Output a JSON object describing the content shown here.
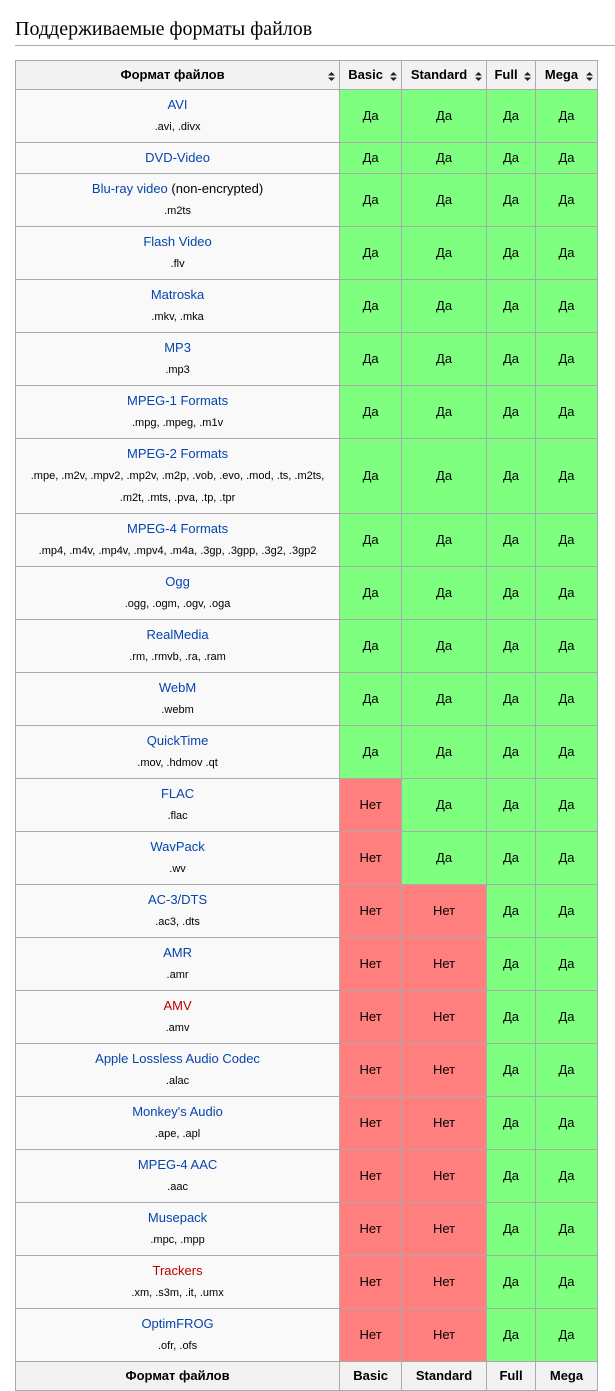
{
  "header": {
    "title": "Поддерживаемые форматы файлов"
  },
  "table": {
    "columns": [
      "Формат файлов",
      "Basic",
      "Standard",
      "Full",
      "Mega"
    ],
    "footer": [
      "Формат файлов",
      "Basic",
      "Standard",
      "Full",
      "Mega"
    ],
    "rows": [
      {
        "name": "AVI",
        "color": "#0645ad",
        "ext": ".avi, .divx",
        "values": [
          "Да",
          "Да",
          "Да",
          "Да"
        ]
      },
      {
        "name": "DVD-Video",
        "color": "#0645ad",
        "values": [
          "Да",
          "Да",
          "Да",
          "Да"
        ]
      },
      {
        "name": "Blu-ray video",
        "note": "(non-encrypted)",
        "color": "#0645ad",
        "ext": ".m2ts",
        "values": [
          "Да",
          "Да",
          "Да",
          "Да"
        ]
      },
      {
        "name": "Flash Video",
        "color": "#0645ad",
        "ext": ".flv",
        "values": [
          "Да",
          "Да",
          "Да",
          "Да"
        ]
      },
      {
        "name": "Matroska",
        "color": "#0645ad",
        "ext": ".mkv, .mka",
        "values": [
          "Да",
          "Да",
          "Да",
          "Да"
        ]
      },
      {
        "name": "MP3",
        "color": "#0645ad",
        "ext": ".mp3",
        "values": [
          "Да",
          "Да",
          "Да",
          "Да"
        ]
      },
      {
        "name": "MPEG-1 Formats",
        "color": "#0645ad",
        "ext": ".mpg, .mpeg, .m1v",
        "values": [
          "Да",
          "Да",
          "Да",
          "Да"
        ]
      },
      {
        "name": "MPEG-2 Formats",
        "color": "#0645ad",
        "ext": ".mpe, .m2v, .mpv2, .mp2v, .m2p, .vob, .evo, .mod, .ts, .m2ts, .m2t, .mts, .pva, .tp, .tpr",
        "values": [
          "Да",
          "Да",
          "Да",
          "Да"
        ]
      },
      {
        "name": "MPEG-4 Formats",
        "color": "#0645ad",
        "ext": ".mp4, .m4v, .mp4v, .mpv4, .m4a, .3gp, .3gpp, .3g2, .3gp2",
        "values": [
          "Да",
          "Да",
          "Да",
          "Да"
        ]
      },
      {
        "name": "Ogg",
        "color": "#0645ad",
        "ext": ".ogg, .ogm, .ogv, .oga",
        "values": [
          "Да",
          "Да",
          "Да",
          "Да"
        ]
      },
      {
        "name": "RealMedia",
        "color": "#0645ad",
        "ext": ".rm, .rmvb, .ra, .ram",
        "values": [
          "Да",
          "Да",
          "Да",
          "Да"
        ]
      },
      {
        "name": "WebM",
        "color": "#0645ad",
        "ext": ".webm",
        "values": [
          "Да",
          "Да",
          "Да",
          "Да"
        ]
      },
      {
        "name": "QuickTime",
        "color": "#0645ad",
        "ext": ".mov, .hdmov .qt",
        "values": [
          "Да",
          "Да",
          "Да",
          "Да"
        ]
      },
      {
        "name": "FLAC",
        "color": "#0645ad",
        "ext": ".flac",
        "values": [
          "Нет",
          "Да",
          "Да",
          "Да"
        ]
      },
      {
        "name": "WavPack",
        "color": "#0645ad",
        "ext": ".wv",
        "values": [
          "Нет",
          "Да",
          "Да",
          "Да"
        ]
      },
      {
        "name": "AC-3/DTS",
        "color": "#0645ad",
        "ext": ".ac3, .dts",
        "values": [
          "Нет",
          "Нет",
          "Да",
          "Да"
        ]
      },
      {
        "name": "AMR",
        "color": "#0645ad",
        "ext": ".amr",
        "values": [
          "Нет",
          "Нет",
          "Да",
          "Да"
        ]
      },
      {
        "name": "AMV",
        "color": "#ba0000",
        "ext": ".amv",
        "values": [
          "Нет",
          "Нет",
          "Да",
          "Да"
        ]
      },
      {
        "name": "Apple Lossless Audio Codec",
        "color": "#0645ad",
        "ext": ".alac",
        "values": [
          "Нет",
          "Нет",
          "Да",
          "Да"
        ]
      },
      {
        "name": "Monkey's Audio",
        "color": "#0645ad",
        "ext": ".ape, .apl",
        "values": [
          "Нет",
          "Нет",
          "Да",
          "Да"
        ]
      },
      {
        "name": "MPEG-4 AAC",
        "color": "#0645ad",
        "ext": ".aac",
        "values": [
          "Нет",
          "Нет",
          "Да",
          "Да"
        ]
      },
      {
        "name": "Musepack",
        "color": "#0645ad",
        "ext": ".mpc, .mpp",
        "values": [
          "Нет",
          "Нет",
          "Да",
          "Да"
        ]
      },
      {
        "name": "Trackers",
        "color": "#ba0000",
        "ext": ".xm, .s3m, .it, .umx",
        "values": [
          "Нет",
          "Нет",
          "Да",
          "Да"
        ]
      },
      {
        "name": "OptimFROG",
        "color": "#0645ad",
        "ext": ".ofr, .ofs",
        "values": [
          "Нет",
          "Нет",
          "Да",
          "Да"
        ]
      }
    ]
  }
}
